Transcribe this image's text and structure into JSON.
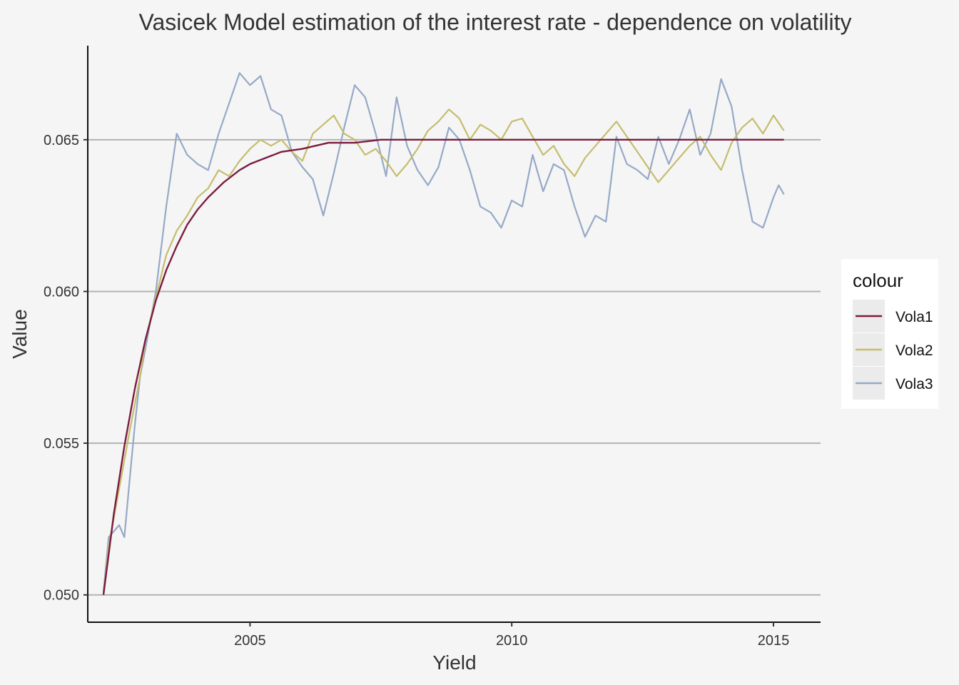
{
  "chart_data": {
    "type": "line",
    "title": "Vasicek Model estimation of the interest rate - dependence on volatility",
    "xlabel": "Yield",
    "ylabel": "Value",
    "xlim": [
      2001.9,
      2015.9
    ],
    "ylim": [
      0.0491,
      0.0681
    ],
    "x_ticks": [
      2005,
      2010,
      2015
    ],
    "x_tick_labels": [
      "2005",
      "2010",
      "2015"
    ],
    "y_ticks": [
      0.05,
      0.055,
      0.06,
      0.065
    ],
    "y_tick_labels": [
      "0.050",
      "0.055",
      "0.060",
      "0.065"
    ],
    "grid": "horizontal major",
    "legend": {
      "title": "colour",
      "position": "right"
    },
    "series": [
      {
        "name": "Vola1",
        "color": "#7b1c40",
        "x": [
          2002.2,
          2002.4,
          2002.6,
          2002.8,
          2003.0,
          2003.2,
          2003.4,
          2003.6,
          2003.8,
          2004.0,
          2004.2,
          2004.5,
          2004.8,
          2005.0,
          2005.3,
          2005.6,
          2006.0,
          2006.5,
          2007.0,
          2007.5,
          2008.0,
          2009.0,
          2010.0,
          2011.0,
          2012.0,
          2013.0,
          2014.0,
          2015.2
        ],
        "values": [
          0.05,
          0.0527,
          0.0549,
          0.0568,
          0.0584,
          0.0597,
          0.0607,
          0.0615,
          0.0622,
          0.0627,
          0.0631,
          0.0636,
          0.064,
          0.0642,
          0.0644,
          0.0646,
          0.0647,
          0.0649,
          0.0649,
          0.065,
          0.065,
          0.065,
          0.065,
          0.065,
          0.065,
          0.065,
          0.065,
          0.065
        ]
      },
      {
        "name": "Vola2",
        "color": "#c5bd6e",
        "x": [
          2002.2,
          2002.3,
          2002.5,
          2002.7,
          2002.9,
          2003.0,
          2003.2,
          2003.4,
          2003.6,
          2003.8,
          2004.0,
          2004.2,
          2004.4,
          2004.6,
          2004.8,
          2005.0,
          2005.2,
          2005.4,
          2005.6,
          2005.8,
          2006.0,
          2006.2,
          2006.4,
          2006.6,
          2006.8,
          2007.0,
          2007.2,
          2007.4,
          2007.6,
          2007.8,
          2008.0,
          2008.2,
          2008.4,
          2008.6,
          2008.8,
          2009.0,
          2009.2,
          2009.4,
          2009.6,
          2009.8,
          2010.0,
          2010.2,
          2010.4,
          2010.6,
          2010.8,
          2011.0,
          2011.2,
          2011.4,
          2011.6,
          2011.8,
          2012.0,
          2012.2,
          2012.4,
          2012.6,
          2012.8,
          2013.0,
          2013.2,
          2013.4,
          2013.6,
          2013.8,
          2014.0,
          2014.2,
          2014.4,
          2014.6,
          2014.8,
          2015.0,
          2015.2
        ],
        "values": [
          0.05,
          0.0516,
          0.0535,
          0.0554,
          0.0572,
          0.0584,
          0.0598,
          0.0612,
          0.062,
          0.0625,
          0.0631,
          0.0634,
          0.064,
          0.0638,
          0.0643,
          0.0647,
          0.065,
          0.0648,
          0.065,
          0.0646,
          0.0643,
          0.0652,
          0.0655,
          0.0658,
          0.0652,
          0.065,
          0.0645,
          0.0647,
          0.0643,
          0.0638,
          0.0642,
          0.0647,
          0.0653,
          0.0656,
          0.066,
          0.0657,
          0.065,
          0.0655,
          0.0653,
          0.065,
          0.0656,
          0.0657,
          0.0651,
          0.0645,
          0.0648,
          0.0642,
          0.0638,
          0.0644,
          0.0648,
          0.0652,
          0.0656,
          0.0651,
          0.0646,
          0.0641,
          0.0636,
          0.064,
          0.0644,
          0.0648,
          0.0651,
          0.0645,
          0.064,
          0.0649,
          0.0654,
          0.0657,
          0.0652,
          0.0658,
          0.0653
        ]
      },
      {
        "name": "Vola3",
        "color": "#96a9c6",
        "x": [
          2002.2,
          2002.3,
          2002.4,
          2002.5,
          2002.6,
          2002.7,
          2002.8,
          2002.9,
          2003.0,
          2003.2,
          2003.4,
          2003.6,
          2003.8,
          2004.0,
          2004.2,
          2004.4,
          2004.6,
          2004.8,
          2005.0,
          2005.2,
          2005.4,
          2005.6,
          2005.8,
          2006.0,
          2006.2,
          2006.4,
          2006.6,
          2006.8,
          2007.0,
          2007.2,
          2007.4,
          2007.6,
          2007.8,
          2008.0,
          2008.2,
          2008.4,
          2008.6,
          2008.8,
          2009.0,
          2009.2,
          2009.4,
          2009.6,
          2009.8,
          2010.0,
          2010.2,
          2010.4,
          2010.6,
          2010.8,
          2011.0,
          2011.2,
          2011.4,
          2011.6,
          2011.8,
          2012.0,
          2012.2,
          2012.4,
          2012.6,
          2012.8,
          2013.0,
          2013.2,
          2013.4,
          2013.6,
          2013.8,
          2014.0,
          2014.2,
          2014.4,
          2014.6,
          2014.8,
          2015.0,
          2015.1,
          2015.2
        ],
        "values": [
          0.0501,
          0.0519,
          0.0521,
          0.0523,
          0.0519,
          0.0538,
          0.0556,
          0.0572,
          0.0581,
          0.06,
          0.0628,
          0.0652,
          0.0645,
          0.0642,
          0.064,
          0.0652,
          0.0662,
          0.0672,
          0.0668,
          0.0671,
          0.066,
          0.0658,
          0.0646,
          0.0641,
          0.0637,
          0.0625,
          0.0639,
          0.0654,
          0.0668,
          0.0664,
          0.0652,
          0.0638,
          0.0664,
          0.0648,
          0.064,
          0.0635,
          0.0641,
          0.0654,
          0.065,
          0.064,
          0.0628,
          0.0626,
          0.0621,
          0.063,
          0.0628,
          0.0645,
          0.0633,
          0.0642,
          0.064,
          0.0628,
          0.0618,
          0.0625,
          0.0623,
          0.0651,
          0.0642,
          0.064,
          0.0637,
          0.0651,
          0.0642,
          0.065,
          0.066,
          0.0645,
          0.0652,
          0.067,
          0.0661,
          0.064,
          0.0623,
          0.0621,
          0.0631,
          0.0635,
          0.0632
        ]
      }
    ]
  }
}
